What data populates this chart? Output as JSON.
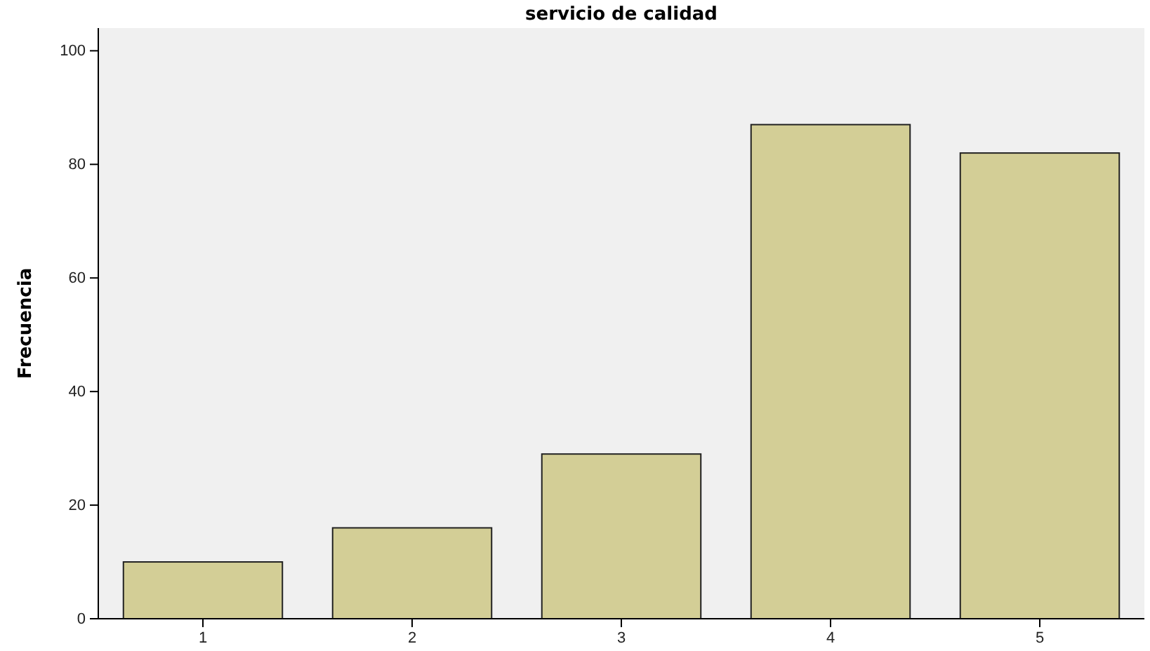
{
  "chart_data": {
    "type": "bar",
    "title": "servicio de calidad",
    "ylabel": "Frecuencia",
    "categories": [
      "1",
      "2",
      "3",
      "4",
      "5"
    ],
    "values": [
      10,
      16,
      29,
      87,
      82
    ],
    "color": "#d3ce96",
    "ylim": [
      0,
      104
    ],
    "yticks": [
      0,
      20,
      40,
      60,
      80,
      100
    ]
  }
}
